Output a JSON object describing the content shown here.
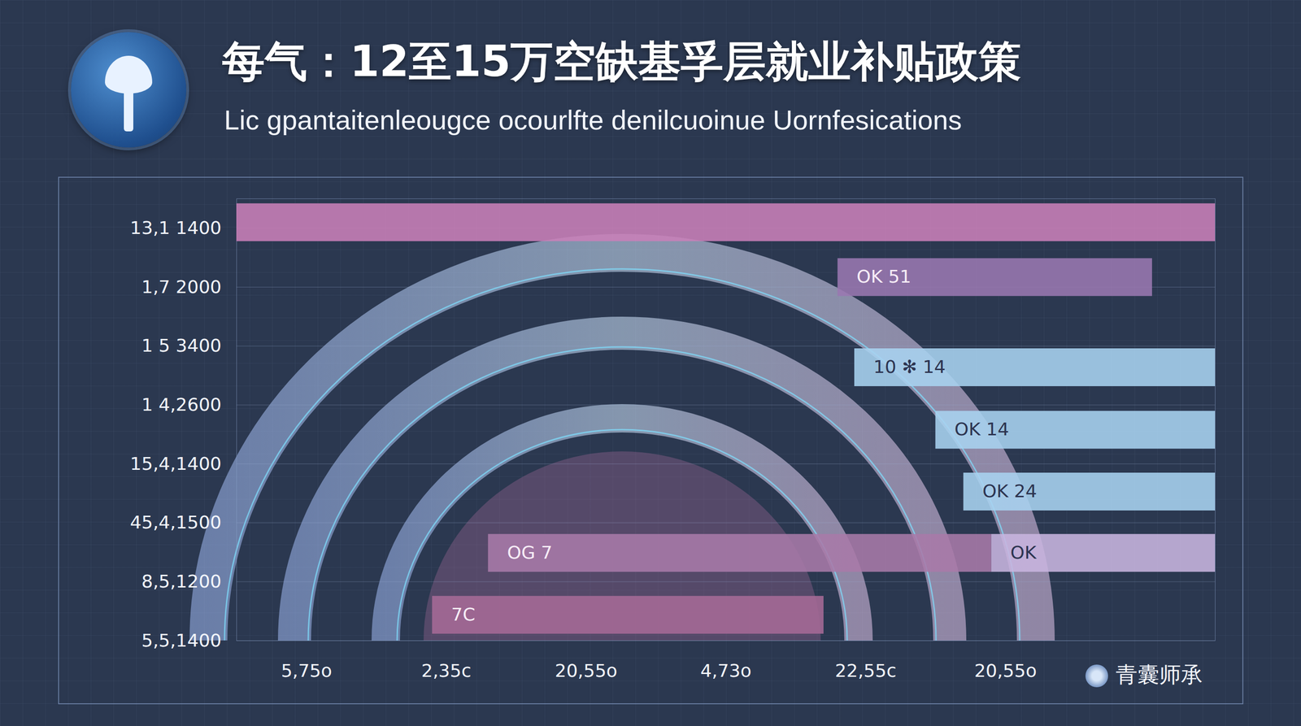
{
  "chart_data": {
    "type": "bar",
    "orientation": "horizontal",
    "title": "每气：12至15万空缺基孚层就业补贴政策",
    "subtitle": "Lic gpantaitenleougce ocourlfte denilcuoinue Uornfesications",
    "watermark": "青囊师承",
    "bars": [
      {
        "y": 8.1,
        "start": 0,
        "end": 7,
        "color": "#c97fb8"
      },
      {
        "y": 7.17,
        "start": 4.3,
        "end": 6.55,
        "color": "#9a78b0",
        "label": "OK 51"
      },
      {
        "y": 5.64,
        "start": 4.42,
        "end": 7,
        "color": "#a9d3f0",
        "label": "10 ✻ 14"
      },
      {
        "y": 4.58,
        "start": 5.0,
        "end": 7,
        "color": "#a9d3f0",
        "label": "OK 14"
      },
      {
        "y": 3.53,
        "start": 5.2,
        "end": 7,
        "color": "#a9d3f0",
        "label": "OK 24"
      },
      {
        "y": 2.49,
        "start": 1.8,
        "end": 5.4,
        "color": "#a87aa8",
        "label": "OG 7"
      },
      {
        "y": 2.49,
        "start": 5.4,
        "end": 7,
        "color": "#c8b5df",
        "label": "OK"
      },
      {
        "y": 1.44,
        "start": 1.4,
        "end": 4.2,
        "color": "#a66a96",
        "label": "7C"
      }
    ],
    "xlim": [
      0,
      7
    ],
    "xticks": [
      {
        "value": 0.5,
        "label": "5,75o"
      },
      {
        "value": 1.5,
        "label": "2,35c"
      },
      {
        "value": 2.5,
        "label": "20,55o"
      },
      {
        "value": 3.5,
        "label": "4,73o"
      },
      {
        "value": 4.5,
        "label": "22,55c"
      },
      {
        "value": 5.5,
        "label": "20,55o"
      }
    ],
    "ylim": [
      1,
      8.5
    ],
    "yticks": [
      {
        "value": 1,
        "label": "5,5,1400"
      },
      {
        "value": 2,
        "label": "8,5,1200"
      },
      {
        "value": 3,
        "label": "45,4,1500"
      },
      {
        "value": 4,
        "label": "15,4,1400"
      },
      {
        "value": 5,
        "label": "1 4,2600"
      },
      {
        "value": 6,
        "label": "1 5 3400"
      },
      {
        "value": 7,
        "label": "1,7 2000"
      },
      {
        "value": 8,
        "label": "13,1 1400"
      }
    ],
    "grid": "y"
  }
}
